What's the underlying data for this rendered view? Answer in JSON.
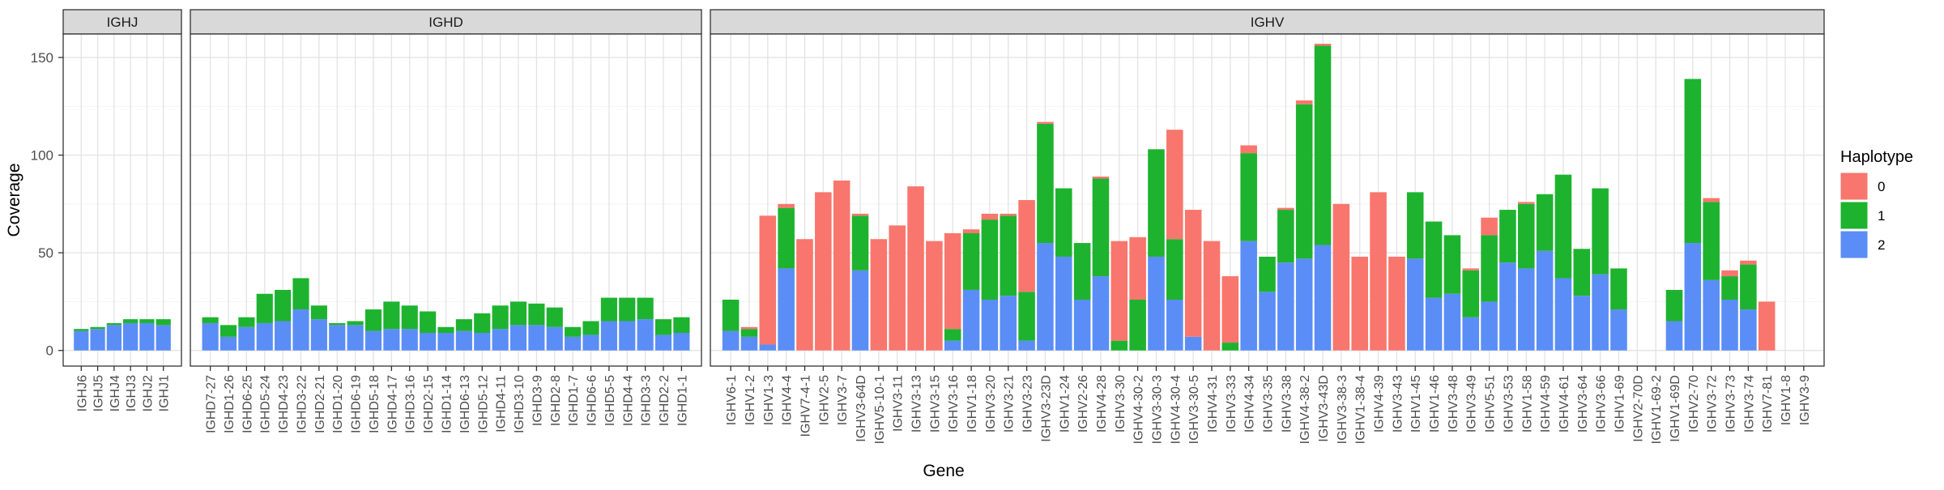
{
  "chart_data": {
    "type": "bar",
    "stacked": true,
    "xlabel": "Gene",
    "ylabel": "Coverage",
    "ylim": [
      -8,
      162
    ],
    "yticks": [
      0,
      50,
      100,
      150
    ],
    "grid": true,
    "legend": {
      "title": "Haplotype",
      "placement": "right",
      "entries": [
        {
          "label": "0",
          "color": "#F8766D"
        },
        {
          "label": "1",
          "color": "#1DB32F"
        },
        {
          "label": "2",
          "color": "#5B8DF6"
        }
      ]
    },
    "stack_order": [
      "2",
      "1",
      "0"
    ],
    "facets": [
      {
        "name": "IGHJ",
        "genes": [
          {
            "name": "IGHJ6",
            "h2": 10,
            "h1": 1,
            "h0": 0
          },
          {
            "name": "IGHJ5",
            "h2": 11,
            "h1": 1,
            "h0": 0
          },
          {
            "name": "IGHJ4",
            "h2": 13,
            "h1": 1,
            "h0": 0
          },
          {
            "name": "IGHJ3",
            "h2": 14,
            "h1": 2,
            "h0": 0
          },
          {
            "name": "IGHJ2",
            "h2": 14,
            "h1": 2,
            "h0": 0
          },
          {
            "name": "IGHJ1",
            "h2": 13,
            "h1": 3,
            "h0": 0
          }
        ]
      },
      {
        "name": "IGHD",
        "genes": [
          {
            "name": "IGHD7-27",
            "h2": 14,
            "h1": 3,
            "h0": 0
          },
          {
            "name": "IGHD1-26",
            "h2": 7,
            "h1": 6,
            "h0": 0
          },
          {
            "name": "IGHD6-25",
            "h2": 12,
            "h1": 5,
            "h0": 0
          },
          {
            "name": "IGHD5-24",
            "h2": 14,
            "h1": 15,
            "h0": 0
          },
          {
            "name": "IGHD4-23",
            "h2": 15,
            "h1": 16,
            "h0": 0
          },
          {
            "name": "IGHD3-22",
            "h2": 21,
            "h1": 16,
            "h0": 0
          },
          {
            "name": "IGHD2-21",
            "h2": 16,
            "h1": 7,
            "h0": 0
          },
          {
            "name": "IGHD1-20",
            "h2": 13,
            "h1": 1,
            "h0": 0
          },
          {
            "name": "IGHD6-19",
            "h2": 13,
            "h1": 2,
            "h0": 0
          },
          {
            "name": "IGHD5-18",
            "h2": 10,
            "h1": 11,
            "h0": 0
          },
          {
            "name": "IGHD4-17",
            "h2": 11,
            "h1": 14,
            "h0": 0
          },
          {
            "name": "IGHD3-16",
            "h2": 11,
            "h1": 12,
            "h0": 0
          },
          {
            "name": "IGHD2-15",
            "h2": 9,
            "h1": 11,
            "h0": 0
          },
          {
            "name": "IGHD1-14",
            "h2": 9,
            "h1": 3,
            "h0": 0
          },
          {
            "name": "IGHD6-13",
            "h2": 10,
            "h1": 6,
            "h0": 0
          },
          {
            "name": "IGHD5-12",
            "h2": 9,
            "h1": 10,
            "h0": 0
          },
          {
            "name": "IGHD4-11",
            "h2": 11,
            "h1": 12,
            "h0": 0
          },
          {
            "name": "IGHD3-10",
            "h2": 13,
            "h1": 12,
            "h0": 0
          },
          {
            "name": "IGHD3-9",
            "h2": 13,
            "h1": 11,
            "h0": 0
          },
          {
            "name": "IGHD2-8",
            "h2": 12,
            "h1": 10,
            "h0": 0
          },
          {
            "name": "IGHD1-7",
            "h2": 7,
            "h1": 5,
            "h0": 0
          },
          {
            "name": "IGHD6-6",
            "h2": 8,
            "h1": 7,
            "h0": 0
          },
          {
            "name": "IGHD5-5",
            "h2": 15,
            "h1": 12,
            "h0": 0
          },
          {
            "name": "IGHD4-4",
            "h2": 15,
            "h1": 12,
            "h0": 0
          },
          {
            "name": "IGHD3-3",
            "h2": 16,
            "h1": 11,
            "h0": 0
          },
          {
            "name": "IGHD2-2",
            "h2": 8,
            "h1": 8,
            "h0": 0
          },
          {
            "name": "IGHD1-1",
            "h2": 9,
            "h1": 8,
            "h0": 0
          }
        ]
      },
      {
        "name": "IGHV",
        "genes": [
          {
            "name": "IGHV6-1",
            "h2": 10,
            "h1": 16,
            "h0": 0
          },
          {
            "name": "IGHV1-2",
            "h2": 7,
            "h1": 4,
            "h0": 1
          },
          {
            "name": "IGHV1-3",
            "h2": 3,
            "h1": 0,
            "h0": 66
          },
          {
            "name": "IGHV4-4",
            "h2": 42,
            "h1": 31,
            "h0": 2
          },
          {
            "name": "IGHV7-4-1",
            "h2": 0,
            "h1": 0,
            "h0": 57
          },
          {
            "name": "IGHV2-5",
            "h2": 0,
            "h1": 0,
            "h0": 81
          },
          {
            "name": "IGHV3-7",
            "h2": 0,
            "h1": 0,
            "h0": 87
          },
          {
            "name": "IGHV3-64D",
            "h2": 41,
            "h1": 28,
            "h0": 1
          },
          {
            "name": "IGHV5-10-1",
            "h2": 0,
            "h1": 0,
            "h0": 57
          },
          {
            "name": "IGHV3-11",
            "h2": 0,
            "h1": 0,
            "h0": 64
          },
          {
            "name": "IGHV3-13",
            "h2": 0,
            "h1": 0,
            "h0": 84
          },
          {
            "name": "IGHV3-15",
            "h2": 0,
            "h1": 0,
            "h0": 56
          },
          {
            "name": "IGHV3-16",
            "h2": 5,
            "h1": 6,
            "h0": 49
          },
          {
            "name": "IGHV1-18",
            "h2": 31,
            "h1": 29,
            "h0": 2
          },
          {
            "name": "IGHV3-20",
            "h2": 26,
            "h1": 41,
            "h0": 3
          },
          {
            "name": "IGHV3-21",
            "h2": 28,
            "h1": 41,
            "h0": 1
          },
          {
            "name": "IGHV3-23",
            "h2": 5,
            "h1": 25,
            "h0": 47
          },
          {
            "name": "IGHV3-23D",
            "h2": 55,
            "h1": 61,
            "h0": 1
          },
          {
            "name": "IGHV1-24",
            "h2": 48,
            "h1": 35,
            "h0": 0
          },
          {
            "name": "IGHV2-26",
            "h2": 26,
            "h1": 29,
            "h0": 0
          },
          {
            "name": "IGHV4-28",
            "h2": 38,
            "h1": 50,
            "h0": 1
          },
          {
            "name": "IGHV3-30",
            "h2": 0,
            "h1": 5,
            "h0": 51
          },
          {
            "name": "IGHV4-30-2",
            "h2": 0,
            "h1": 26,
            "h0": 32
          },
          {
            "name": "IGHV3-30-3",
            "h2": 48,
            "h1": 55,
            "h0": 0
          },
          {
            "name": "IGHV4-30-4",
            "h2": 26,
            "h1": 31,
            "h0": 56
          },
          {
            "name": "IGHV3-30-5",
            "h2": 7,
            "h1": 0,
            "h0": 65
          },
          {
            "name": "IGHV4-31",
            "h2": 0,
            "h1": 0,
            "h0": 56
          },
          {
            "name": "IGHV3-33",
            "h2": 0,
            "h1": 4,
            "h0": 34
          },
          {
            "name": "IGHV4-34",
            "h2": 56,
            "h1": 45,
            "h0": 4
          },
          {
            "name": "IGHV3-35",
            "h2": 30,
            "h1": 18,
            "h0": 0
          },
          {
            "name": "IGHV3-38",
            "h2": 45,
            "h1": 27,
            "h0": 1
          },
          {
            "name": "IGHV4-38-2",
            "h2": 47,
            "h1": 79,
            "h0": 2
          },
          {
            "name": "IGHV3-43D",
            "h2": 54,
            "h1": 102,
            "h0": 1
          },
          {
            "name": "IGHV3-38-3",
            "h2": 0,
            "h1": 0,
            "h0": 75
          },
          {
            "name": "IGHV1-38-4",
            "h2": 0,
            "h1": 0,
            "h0": 48
          },
          {
            "name": "IGHV4-39",
            "h2": 0,
            "h1": 0,
            "h0": 81
          },
          {
            "name": "IGHV3-43",
            "h2": 0,
            "h1": 0,
            "h0": 48
          },
          {
            "name": "IGHV1-45",
            "h2": 47,
            "h1": 34,
            "h0": 0
          },
          {
            "name": "IGHV1-46",
            "h2": 27,
            "h1": 39,
            "h0": 0
          },
          {
            "name": "IGHV3-48",
            "h2": 29,
            "h1": 30,
            "h0": 0
          },
          {
            "name": "IGHV3-49",
            "h2": 17,
            "h1": 24,
            "h0": 1
          },
          {
            "name": "IGHV5-51",
            "h2": 25,
            "h1": 34,
            "h0": 9
          },
          {
            "name": "IGHV3-53",
            "h2": 45,
            "h1": 27,
            "h0": 0
          },
          {
            "name": "IGHV1-58",
            "h2": 42,
            "h1": 33,
            "h0": 1
          },
          {
            "name": "IGHV4-59",
            "h2": 51,
            "h1": 29,
            "h0": 0
          },
          {
            "name": "IGHV4-61",
            "h2": 37,
            "h1": 53,
            "h0": 0
          },
          {
            "name": "IGHV3-64",
            "h2": 28,
            "h1": 24,
            "h0": 0
          },
          {
            "name": "IGHV3-66",
            "h2": 39,
            "h1": 44,
            "h0": 0
          },
          {
            "name": "IGHV1-69",
            "h2": 21,
            "h1": 21,
            "h0": 0
          },
          {
            "name": "IGHV2-70D",
            "h2": 0,
            "h1": 0,
            "h0": 0
          },
          {
            "name": "IGHV1-69-2",
            "h2": 0,
            "h1": 0,
            "h0": 0
          },
          {
            "name": "IGHV1-69D",
            "h2": 15,
            "h1": 16,
            "h0": 0
          },
          {
            "name": "IGHV2-70",
            "h2": 55,
            "h1": 84,
            "h0": 0
          },
          {
            "name": "IGHV3-72",
            "h2": 36,
            "h1": 40,
            "h0": 2
          },
          {
            "name": "IGHV3-73",
            "h2": 26,
            "h1": 12,
            "h0": 3
          },
          {
            "name": "IGHV3-74",
            "h2": 21,
            "h1": 23,
            "h0": 2
          },
          {
            "name": "IGHV7-81",
            "h2": 0,
            "h1": 0,
            "h0": 25
          },
          {
            "name": "IGHV1-8",
            "h2": 0,
            "h1": 0,
            "h0": 0
          },
          {
            "name": "IGHV3-9",
            "h2": 0,
            "h1": 0,
            "h0": 0
          }
        ]
      }
    ]
  }
}
